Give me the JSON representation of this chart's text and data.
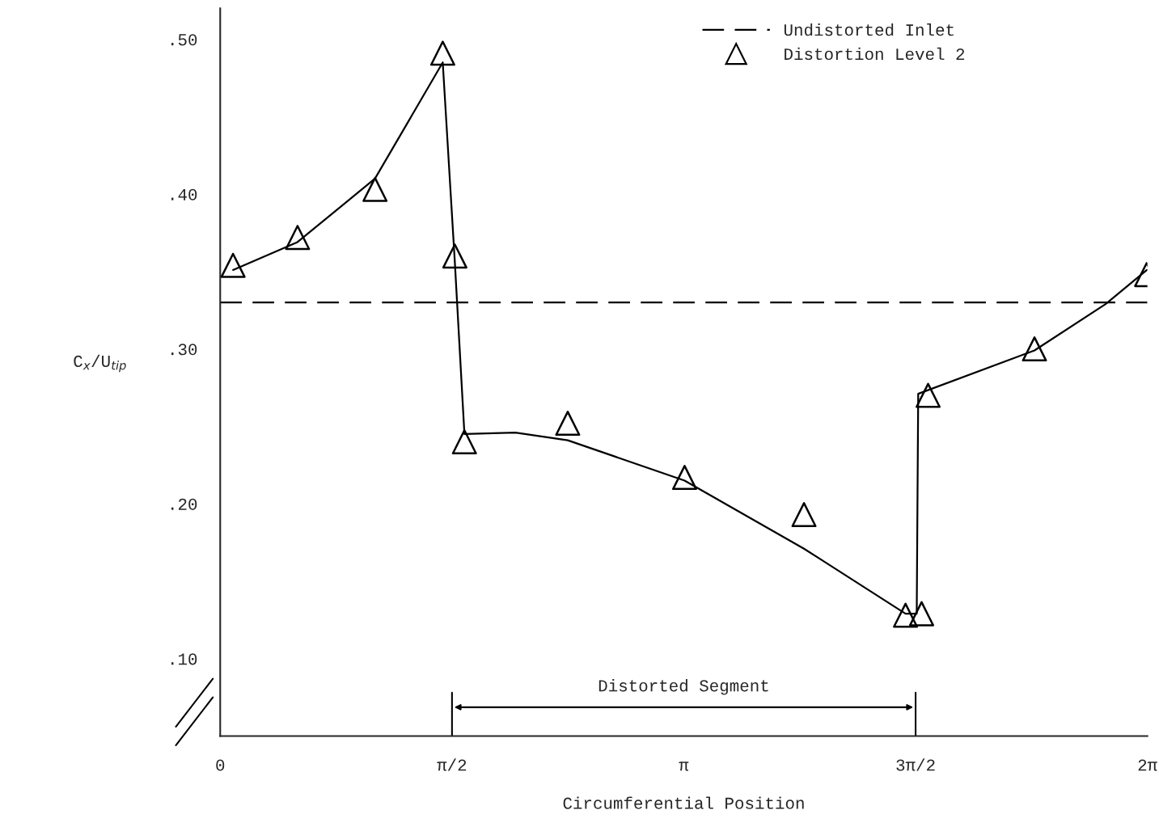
{
  "chart_data": {
    "type": "line",
    "xlabel": "Circumferential Position",
    "ylabel": "C$_{x}$/U$_{tip}$",
    "xlim": [
      0,
      6.2832
    ],
    "ylim": [
      0.05,
      0.52
    ],
    "xticks": [
      0,
      {
        "value": 1.5708,
        "label": "π/2"
      },
      {
        "value": 3.1416,
        "label": "π"
      },
      {
        "value": 4.7124,
        "label": "3π/2"
      },
      {
        "value": 6.2832,
        "label": "2π"
      }
    ],
    "yticks": [
      {
        "value": 0.1,
        "label": ".10"
      },
      {
        "value": 0.2,
        "label": ".20"
      },
      {
        "value": 0.3,
        "label": ".30"
      },
      {
        "value": 0.4,
        "label": ".40"
      },
      {
        "value": 0.5,
        "label": ".50"
      }
    ],
    "grid": false,
    "legend": "top right",
    "series": [
      {
        "name": "Undistorted Inlet",
        "line_style": "dashed",
        "marker": "none",
        "color": "#000000",
        "x": [
          0,
          6.2832
        ],
        "values": [
          0.33,
          0.33
        ]
      },
      {
        "line_style": "solid",
        "marker": "none",
        "color": "#000000",
        "x": [
          0.087,
          0.524,
          1.049,
          1.508,
          1.59,
          1.655,
          2.0,
          2.355,
          3.147,
          3.956,
          4.644,
          4.72,
          4.73,
          5.518,
          6.0,
          6.28
        ],
        "values": [
          0.351,
          0.369,
          0.41,
          0.485,
          0.356,
          0.245,
          0.246,
          0.241,
          0.215,
          0.171,
          0.129,
          0.129,
          0.271,
          0.299,
          0.329,
          0.351
        ]
      },
      {
        "name": "Distortion Level 2",
        "type": "scatter",
        "marker": "triangle",
        "color": "#000000",
        "x": [
          0.087,
          0.524,
          1.049,
          1.508,
          1.59,
          1.655,
          2.355,
          3.147,
          3.956,
          4.644,
          4.753,
          4.797,
          5.518,
          6.278
        ],
        "values": [
          0.354,
          0.372,
          0.403,
          0.491,
          0.36,
          0.24,
          0.252,
          0.217,
          0.193,
          0.128,
          0.129,
          0.27,
          0.3,
          0.348
        ]
      }
    ],
    "annotations": [
      "Distorted Segment"
    ]
  }
}
